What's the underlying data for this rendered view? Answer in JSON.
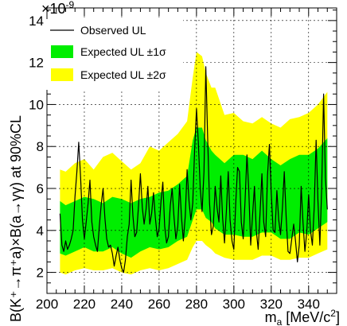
{
  "chart_data": {
    "type": "area",
    "title": "",
    "xlabel_main": "m",
    "xlabel_sub": "a",
    "xlabel_unit": "[MeV/c",
    "xlabel_sup": "2",
    "xlabel_close": "]",
    "ylabel": "B(K⁺→π⁺a)×B(a→γγ) at 90%CL",
    "y_exponent_label": "×10",
    "y_exponent_power": "-9",
    "xlim": [
      200,
      355
    ],
    "ylim": [
      1.0,
      14.6
    ],
    "x_ticks": [
      200,
      220,
      240,
      260,
      280,
      300,
      320,
      340
    ],
    "y_ticks": [
      2,
      4,
      6,
      8,
      10,
      12,
      14
    ],
    "grid": true,
    "legend_position": "top-left",
    "colors": {
      "band1": "#00ee00",
      "band2": "#ffff00",
      "observed": "#000000"
    },
    "legend": [
      {
        "label": "Observed UL",
        "kind": "line"
      },
      {
        "label": "Expected UL ±1σ",
        "kind": "band1"
      },
      {
        "label": "Expected UL ±2σ",
        "kind": "band2"
      }
    ],
    "x": [
      207,
      210,
      215,
      220,
      225,
      230,
      235,
      240,
      245,
      250,
      255,
      260,
      265,
      270,
      275,
      278,
      280,
      283,
      285,
      288,
      290,
      295,
      300,
      305,
      310,
      315,
      320,
      325,
      330,
      335,
      340,
      345,
      350
    ],
    "band2_upper": [
      6.9,
      6.8,
      7.2,
      7.4,
      6.9,
      7.5,
      7.7,
      7.3,
      6.9,
      7.2,
      8.0,
      7.8,
      8.2,
      8.6,
      9.2,
      11.3,
      12.5,
      12.3,
      11.5,
      10.8,
      10.8,
      9.5,
      9.6,
      9.2,
      9.1,
      9.4,
      9.1,
      8.9,
      9.3,
      9.4,
      9.6,
      10.0,
      10.6
    ],
    "band1_upper": [
      5.4,
      5.2,
      5.4,
      5.6,
      5.5,
      5.3,
      5.6,
      5.5,
      5.3,
      5.5,
      5.6,
      5.8,
      5.9,
      6.2,
      6.6,
      8.3,
      8.9,
      8.9,
      8.3,
      7.8,
      7.6,
      7.2,
      7.6,
      7.6,
      7.4,
      7.8,
      7.4,
      7.1,
      7.4,
      7.6,
      7.6,
      7.9,
      8.4
    ],
    "band1_lower": [
      2.9,
      2.8,
      3.0,
      3.2,
      3.0,
      3.0,
      3.2,
      2.9,
      2.7,
      3.0,
      3.2,
      3.1,
      3.2,
      3.5,
      3.7,
      4.5,
      5.0,
      5.0,
      4.6,
      4.4,
      4.1,
      3.8,
      3.8,
      3.7,
      3.7,
      3.9,
      3.9,
      3.6,
      3.6,
      3.9,
      3.8,
      4.1,
      4.4
    ],
    "band2_lower": [
      2.0,
      1.9,
      2.1,
      2.2,
      2.1,
      2.1,
      2.2,
      2.0,
      1.9,
      2.1,
      2.2,
      2.1,
      2.2,
      2.4,
      2.6,
      3.2,
      3.5,
      3.5,
      3.3,
      3.1,
      2.9,
      2.7,
      2.6,
      2.6,
      2.6,
      2.8,
      2.8,
      2.6,
      2.6,
      2.7,
      2.7,
      2.9,
      3.1
    ],
    "observed": {
      "x": [
        207,
        208,
        209,
        210,
        211,
        212,
        213,
        214,
        215,
        216,
        217,
        218,
        219,
        220,
        221,
        222,
        223,
        224,
        225,
        226,
        227,
        228,
        229,
        230,
        231,
        232,
        233,
        234,
        235,
        236,
        237,
        238,
        239,
        240,
        241,
        242,
        243,
        244,
        245,
        246,
        247,
        248,
        249,
        250,
        251,
        252,
        253,
        254,
        255,
        256,
        257,
        258,
        259,
        260,
        261,
        262,
        263,
        264,
        265,
        266,
        267,
        268,
        269,
        270,
        271,
        272,
        273,
        274,
        275,
        276,
        277,
        278,
        279,
        280,
        281,
        282,
        283,
        284,
        285,
        286,
        287,
        288,
        289,
        290,
        291,
        292,
        293,
        294,
        295,
        296,
        297,
        298,
        299,
        300,
        301,
        302,
        303,
        304,
        305,
        306,
        307,
        308,
        309,
        310,
        311,
        312,
        313,
        314,
        315,
        316,
        317,
        318,
        319,
        320,
        321,
        322,
        323,
        324,
        325,
        326,
        327,
        328,
        329,
        330,
        331,
        332,
        333,
        334,
        335,
        336,
        337,
        338,
        339,
        340,
        341,
        342,
        343,
        344,
        345,
        346,
        347,
        348,
        349,
        350
      ],
      "y": [
        4.8,
        3.3,
        3.0,
        3.5,
        3.1,
        3.3,
        3.6,
        4.0,
        5.6,
        6.8,
        8.2,
        6.5,
        4.5,
        3.6,
        4.4,
        5.3,
        6.4,
        4.4,
        3.7,
        3.3,
        3.0,
        4.2,
        5.2,
        6.0,
        4.6,
        3.6,
        3.2,
        3.3,
        2.9,
        2.3,
        2.8,
        3.2,
        2.6,
        2.2,
        2.0,
        2.6,
        3.7,
        4.3,
        6.4,
        4.7,
        3.7,
        3.9,
        5.2,
        6.7,
        5.1,
        4.3,
        5.0,
        6.1,
        4.3,
        4.8,
        5.8,
        4.6,
        3.7,
        4.1,
        5.4,
        6.3,
        4.2,
        3.4,
        3.7,
        5.2,
        6.0,
        4.6,
        3.6,
        4.2,
        6.2,
        4.6,
        3.5,
        4.7,
        6.9,
        5.4,
        4.5,
        5.3,
        7.8,
        9.8,
        8.2,
        6.0,
        4.9,
        6.8,
        11.8,
        8.3,
        5.3,
        3.8,
        4.2,
        6.1,
        5.1,
        4.4,
        6.6,
        4.6,
        3.4,
        4.9,
        6.8,
        4.5,
        3.5,
        3.1,
        5.3,
        7.0,
        6.8,
        4.4,
        3.6,
        5.4,
        7.6,
        5.9,
        3.3,
        4.7,
        6.1,
        4.0,
        3.1,
        4.8,
        6.7,
        4.4,
        3.7,
        6.6,
        8.1,
        5.8,
        4.0,
        3.9,
        5.9,
        4.5,
        3.8,
        5.1,
        6.8,
        4.6,
        3.0,
        2.9,
        3.6,
        4.3,
        3.5,
        2.5,
        3.3,
        6.1,
        4.4,
        3.0,
        3.9,
        5.7,
        4.0,
        3.3,
        5.1,
        8.3,
        5.4,
        3.3,
        6.0,
        10.5,
        6.5,
        5.0
      ]
    }
  }
}
